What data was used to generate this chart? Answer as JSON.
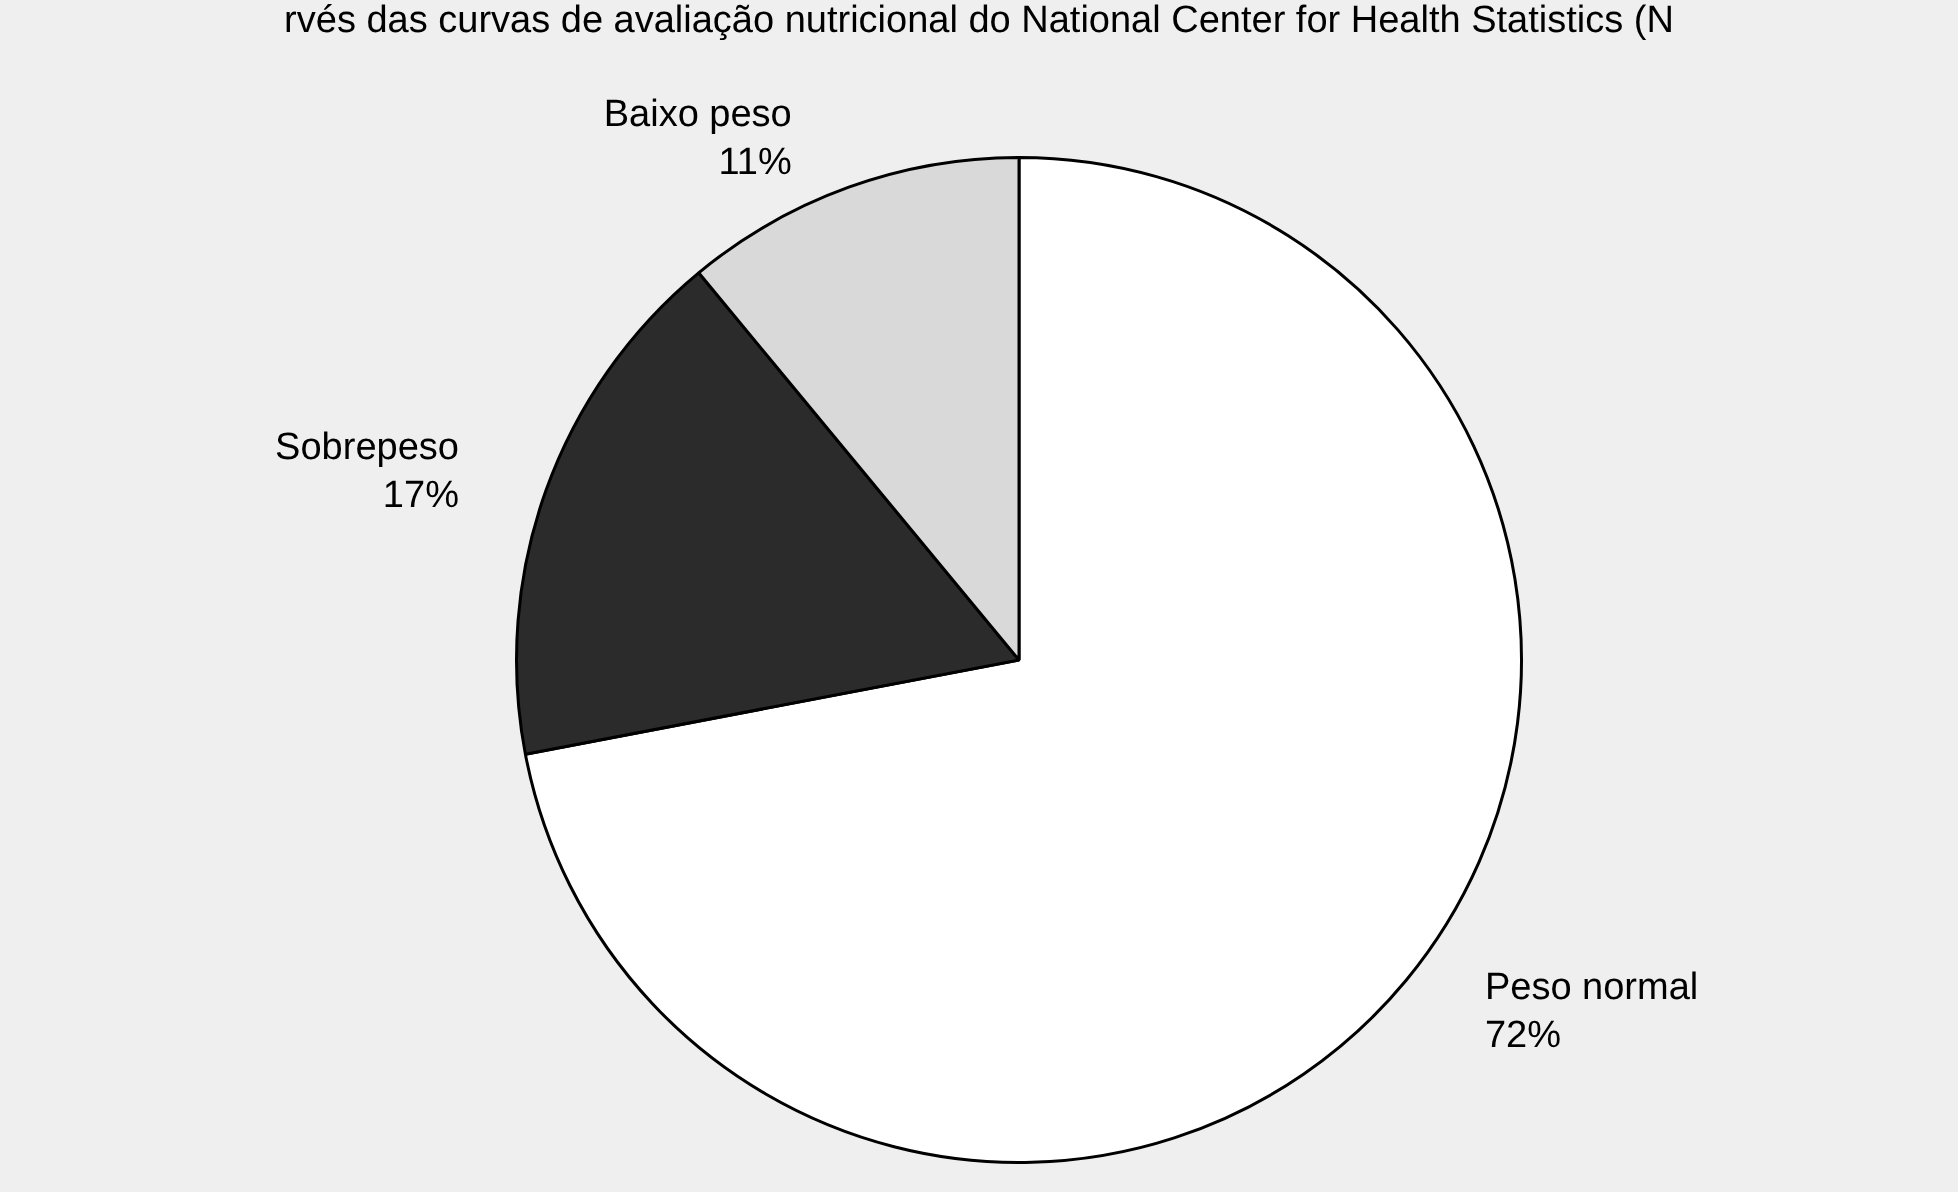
{
  "chart_data": {
    "type": "pie",
    "annotations": [
      "rvés das curvas de avaliação nutricional do National Center for Health Statistics (N"
    ],
    "categories": [
      "Peso normal",
      "Sobrepeso",
      "Baixo peso"
    ],
    "values": [
      72,
      17,
      11
    ],
    "value_labels": [
      "72%",
      "17%",
      "11%"
    ],
    "colors": [
      "#ffffff",
      "#2b2b2b",
      "#d9d9d9"
    ],
    "legend": false
  }
}
